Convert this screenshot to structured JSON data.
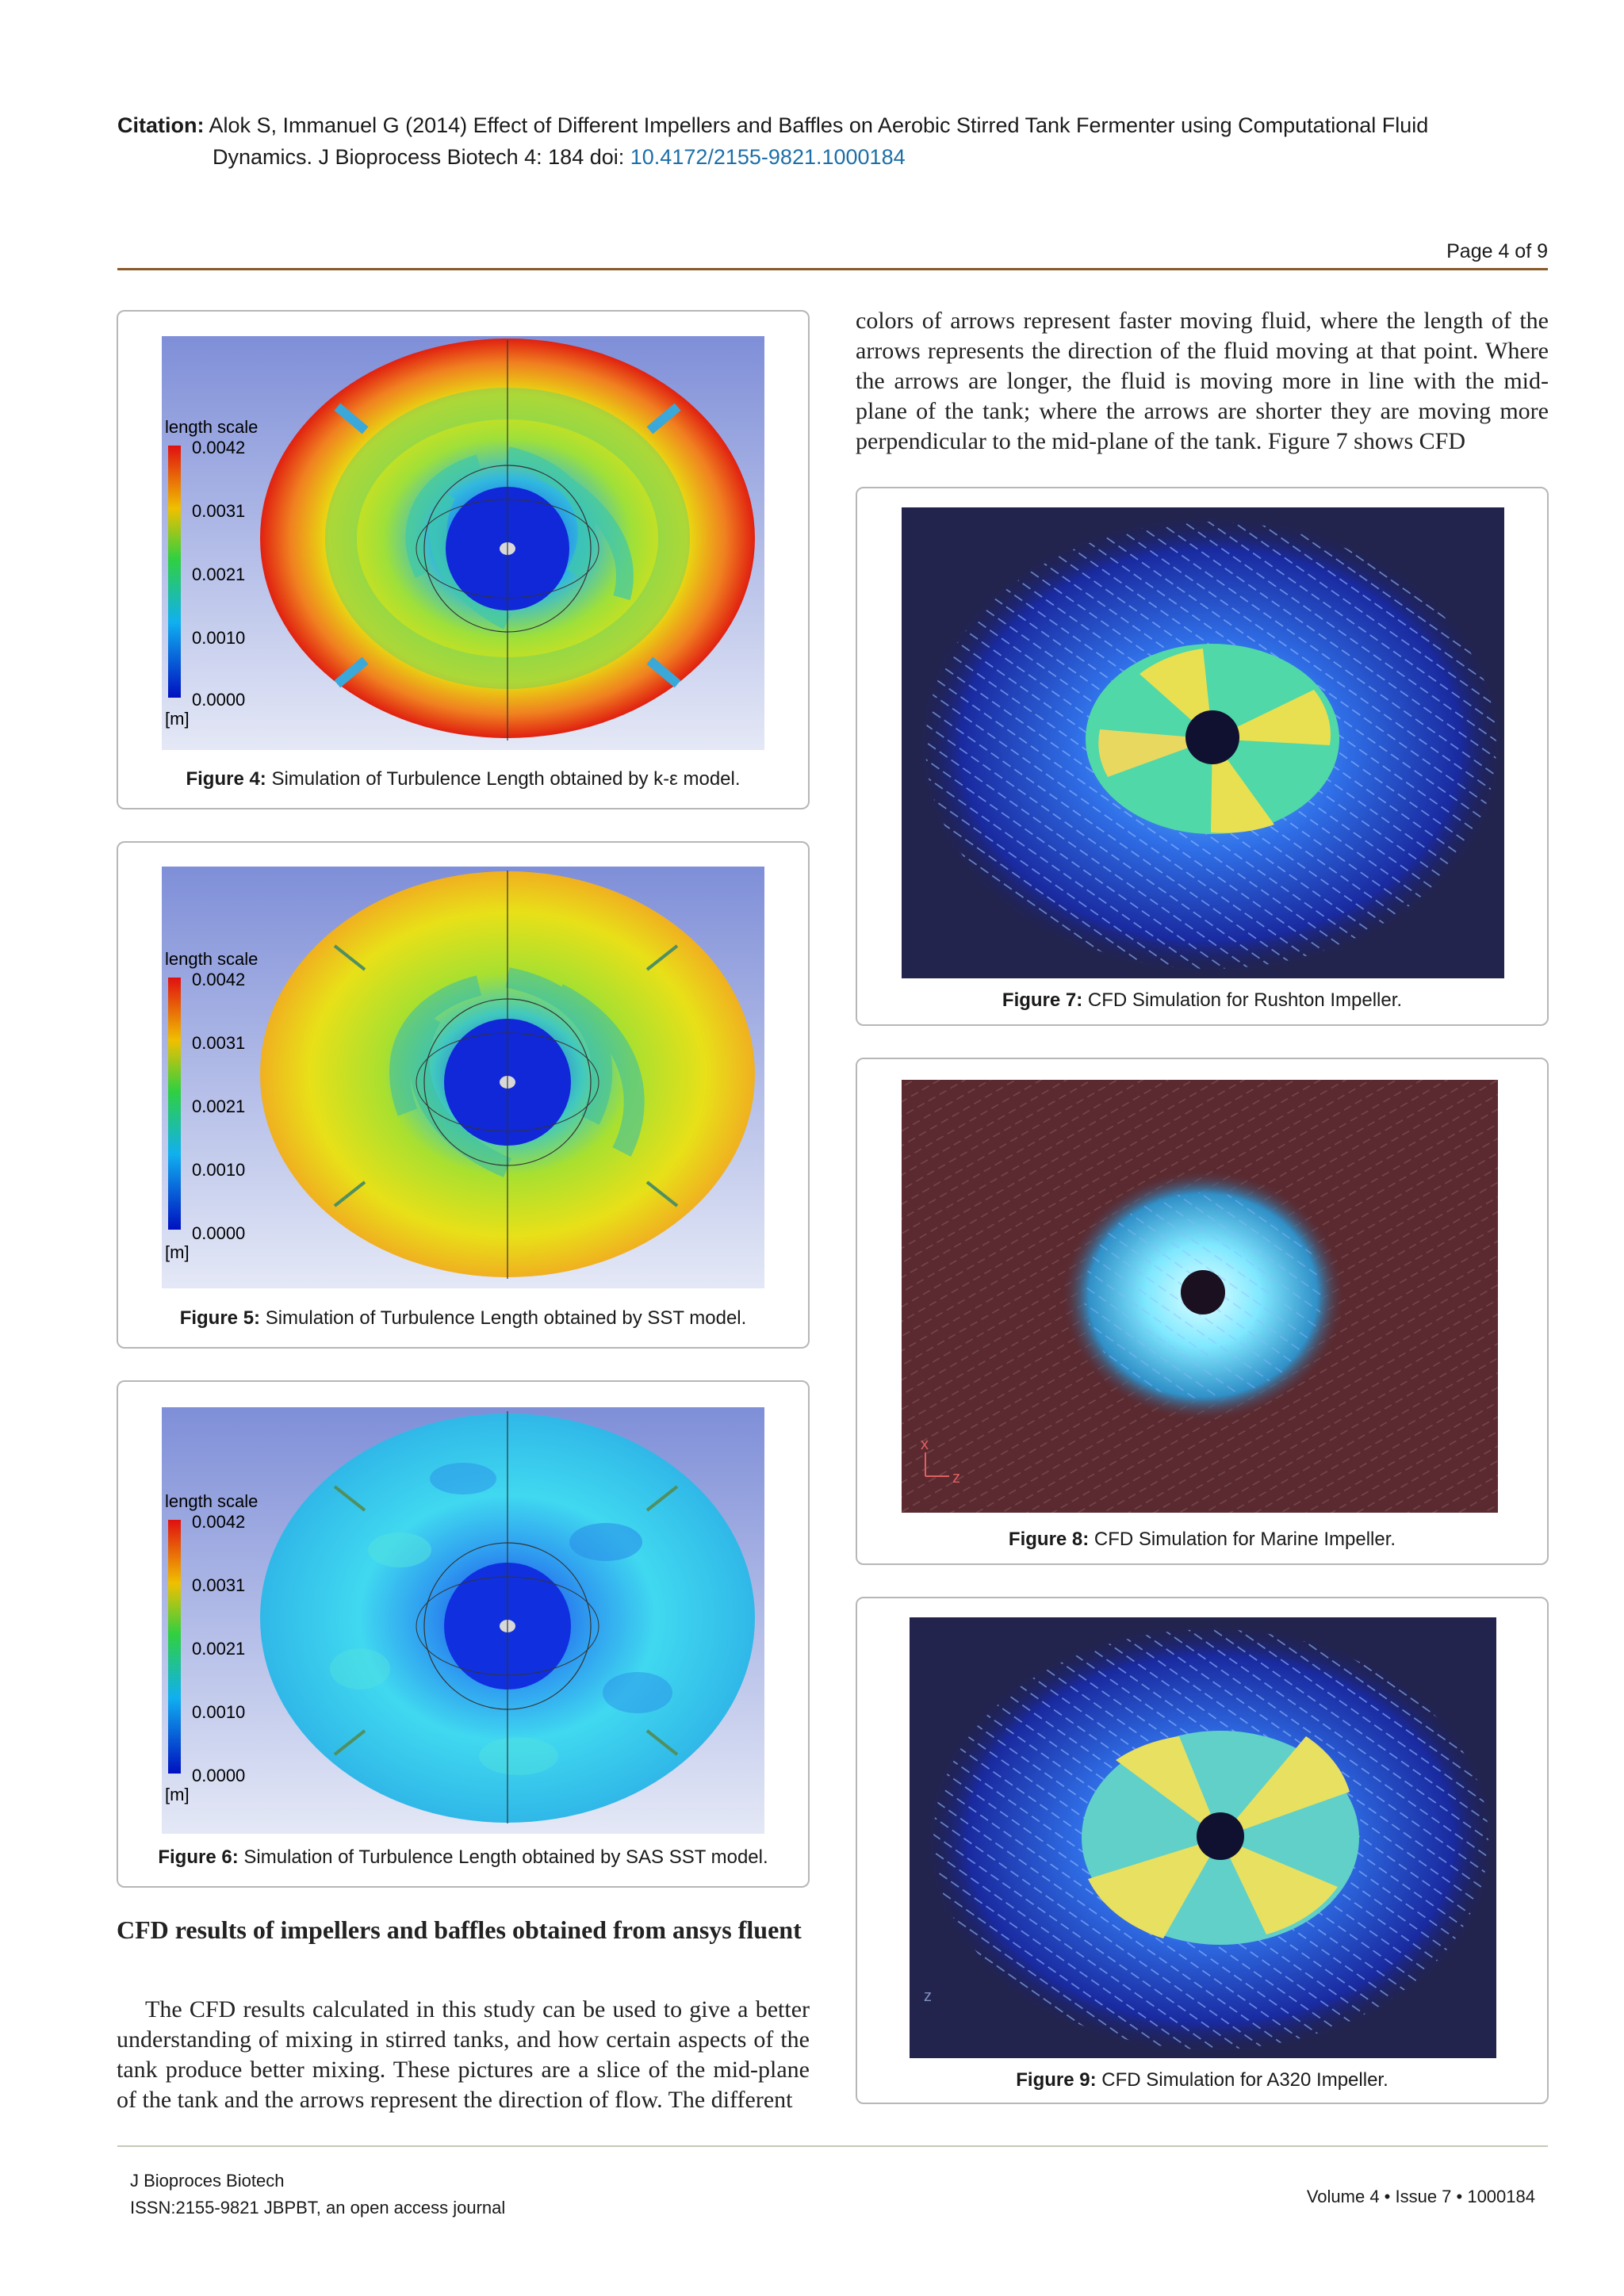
{
  "citation": {
    "label": "Citation:",
    "text_line1": "Alok S, Immanuel G (2014) Effect of Different Impellers and Baffles on Aerobic Stirred Tank Fermenter using Computational Fluid",
    "text_line2": "Dynamics. J Bioprocess Biotech 4: 184 doi: ",
    "doi": "10.4172/2155-9821.1000184"
  },
  "page": {
    "label": "Page 4 of 9"
  },
  "colorbar": {
    "title": "length scale",
    "ticks": [
      "0.0042",
      "0.0031",
      "0.0021",
      "0.0010",
      "0.0000"
    ],
    "unit": "[m]"
  },
  "figures": {
    "fig4": {
      "label": "Figure 4:",
      "caption": " Simulation of Turbulence Length obtained by k-ε model."
    },
    "fig5": {
      "label": "Figure 5:",
      "caption": " Simulation of Turbulence Length obtained by SST model."
    },
    "fig6": {
      "label": "Figure 6:",
      "caption": " Simulation of Turbulence Length obtained by SAS SST model."
    },
    "fig7": {
      "label": "Figure 7:",
      "caption": " CFD Simulation for Rushton Impeller."
    },
    "fig8": {
      "label": "Figure 8:",
      "caption": " CFD Simulation for Marine Impeller.",
      "axis_x": "x",
      "axis_z": "z"
    },
    "fig9": {
      "label": "Figure 9:",
      "caption": " CFD Simulation for A320 Impeller.",
      "axis_z": "z"
    }
  },
  "section": {
    "title": "CFD results of impellers and baffles obtained from ansys fluent"
  },
  "paragraphs": {
    "left": "The CFD results calculated in this study can be used to give a better understanding of mixing in stirred tanks, and how certain aspects of the tank produce better mixing. These pictures are a slice of the mid-plane of the tank and the arrows represent the direction of flow. The different",
    "right": "colors of arrows represent faster moving fluid, where the length of the arrows represents the direction of the fluid moving at that point. Where the arrows are longer, the fluid is moving more in line with the mid-plane of the tank; where the arrows are shorter they are moving more perpendicular to the mid-plane of the tank. Figure 7 shows CFD"
  },
  "footer": {
    "journal": "J Bioproces Biotech",
    "issn": "ISSN:2155-9821 JBPBT, an open access journal",
    "volume": "Volume 4 • Issue 7 • 1000184"
  },
  "colors": {
    "rule": "#8b5a2b",
    "doi": "#1d6fa8"
  }
}
